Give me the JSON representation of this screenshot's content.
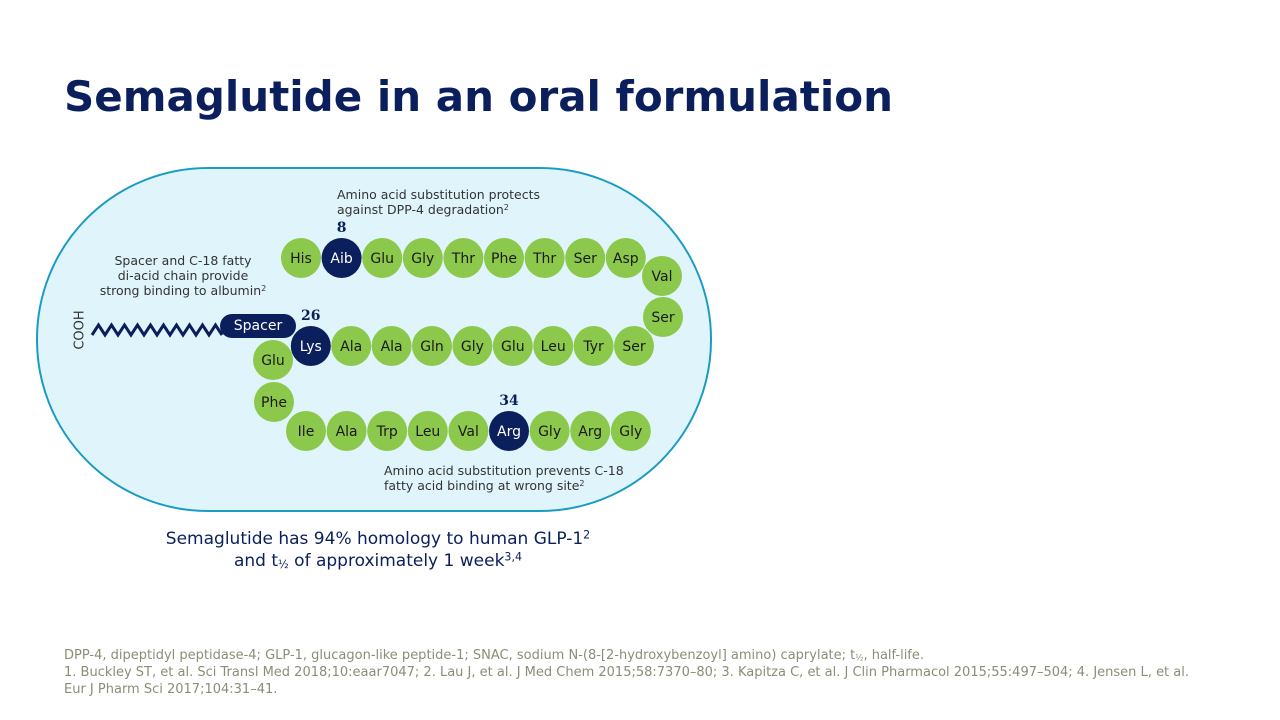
{
  "title": "Semaglutide in an oral formulation",
  "diagram": {
    "cooh": "COOH",
    "spacer": "Spacer",
    "residues": [
      {
        "label": "His"
      },
      {
        "label": "Aib",
        "number": 8
      },
      {
        "label": "Glu"
      },
      {
        "label": "Gly"
      },
      {
        "label": "Thr"
      },
      {
        "label": "Phe"
      },
      {
        "label": "Thr"
      },
      {
        "label": "Ser"
      },
      {
        "label": "Asp"
      },
      {
        "label": "Val"
      },
      {
        "label": "Ser"
      },
      {
        "label": "Ser"
      },
      {
        "label": "Tyr"
      },
      {
        "label": "Leu"
      },
      {
        "label": "Glu"
      },
      {
        "label": "Gly"
      },
      {
        "label": "Gln"
      },
      {
        "label": "Ala"
      },
      {
        "label": "Ala"
      },
      {
        "label": "Lys",
        "number": 26
      },
      {
        "label": "Glu"
      },
      {
        "label": "Phe"
      },
      {
        "label": "Ile"
      },
      {
        "label": "Ala"
      },
      {
        "label": "Trp"
      },
      {
        "label": "Leu"
      },
      {
        "label": "Val"
      },
      {
        "label": "Arg",
        "number": 34
      },
      {
        "label": "Gly"
      },
      {
        "label": "Arg"
      },
      {
        "label": "Gly"
      }
    ],
    "callout_top": {
      "lines": [
        "Amino acid substitution protects",
        "against DPP-4 degradation"
      ],
      "ref": "2"
    },
    "callout_left": {
      "lines": [
        "Spacer and C-18 fatty",
        "di-acid chain provide",
        "strong binding to albumin"
      ],
      "ref": "2"
    },
    "callout_bottom": {
      "lines": [
        "Amino acid substitution prevents C-18",
        "fatty acid binding at wrong site"
      ],
      "ref": "2"
    }
  },
  "caption": {
    "line1": "Semaglutide has 94% homology to human GLP-1",
    "line1_ref": "2",
    "line2_start": "and t",
    "line2_sub": "½",
    "line2_end": " of approximately 1 week",
    "line2_ref": "3,4"
  },
  "footnotes": {
    "abbreviations_start": "DPP-4, dipeptidyl peptidase-4; GLP-1, glucagon-like peptide-1; SNAC, sodium N-(8-[2-hydroxybenzoyl] amino) caprylate; t",
    "abbreviations_sub": "½",
    "abbreviations_end": ", half-life.",
    "references": "1. Buckley ST, et al. Sci Transl Med 2018;10:eaar7047; 2. Lau J, et al. J Med Chem 2015;58:7370–80; 3. Kapitza C, et al. J Clin Pharmacol 2015;55:497–504; 4. Jensen L, et al. Eur J Pharm Sci 2017;104:31–41."
  }
}
